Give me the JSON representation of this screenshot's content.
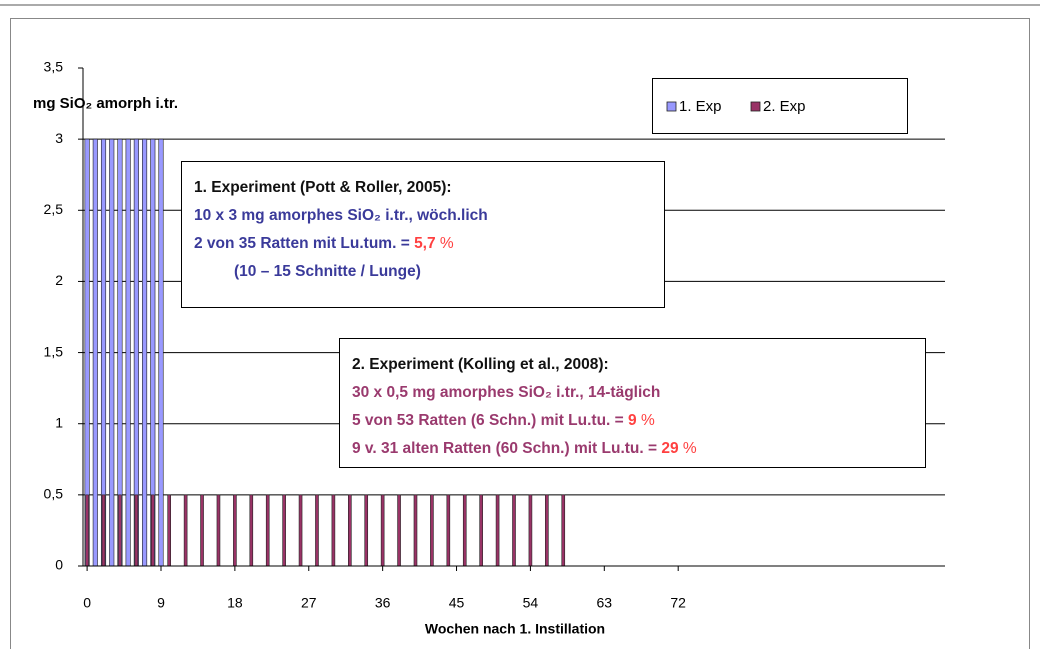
{
  "chart_data": {
    "type": "bar",
    "y_label": "mg SiO₂ amorph i.tr.",
    "x_label": "Wochen nach 1. Instillation",
    "xlim": [
      -0.5,
      104.5
    ],
    "xticks": [
      0,
      9,
      18,
      27,
      36,
      45,
      54,
      63,
      72
    ],
    "ylim": [
      0,
      3.5
    ],
    "yticks": [
      0,
      {
        "value": 0.5,
        "label": "0,5"
      },
      1,
      {
        "value": 1.5,
        "label": "1,5"
      },
      2,
      {
        "value": 2.5,
        "label": "2,5"
      },
      3,
      {
        "value": 3.5,
        "label": "3,5"
      }
    ],
    "grid": true,
    "legend": "top-right",
    "series": [
      {
        "name": "1. Exp",
        "color": "#9999ff",
        "x": [
          0,
          1,
          2,
          3,
          4,
          5,
          6,
          7,
          8,
          9
        ],
        "values": [
          3,
          3,
          3,
          3,
          3,
          3,
          3,
          3,
          3,
          3
        ]
      },
      {
        "name": "2. Exp",
        "color": "#993366",
        "x": [
          0,
          2,
          4,
          6,
          8,
          10,
          12,
          14,
          16,
          18,
          20,
          22,
          24,
          26,
          28,
          30,
          32,
          34,
          36,
          38,
          40,
          42,
          44,
          46,
          48,
          50,
          52,
          54,
          56,
          58
        ],
        "values": [
          0.5,
          0.5,
          0.5,
          0.5,
          0.5,
          0.5,
          0.5,
          0.5,
          0.5,
          0.5,
          0.5,
          0.5,
          0.5,
          0.5,
          0.5,
          0.5,
          0.5,
          0.5,
          0.5,
          0.5,
          0.5,
          0.5,
          0.5,
          0.5,
          0.5,
          0.5,
          0.5,
          0.5,
          0.5,
          0.5
        ]
      }
    ],
    "annotations": [
      {
        "lines": [
          [
            "1. Experiment (Pott & Roller, 2005):"
          ],
          [
            "10 x 3 mg amorphes SiO₂ i.tr., wöch.lich"
          ],
          [
            "2 von 35 Ratten mit Lu.tum. = ",
            "5,7",
            " %"
          ],
          [
            "(10 – 15 Schnitte / Lunge)"
          ]
        ]
      },
      {
        "lines": [
          [
            "2. Experiment (Kolling et al., 2008):"
          ],
          [
            "30 x 0,5 mg amorphes SiO₂ i.tr., 14-täglich"
          ],
          [
            "5 von 53 Ratten (6 Schn.) mit Lu.tu. = ",
            "9",
            " %"
          ],
          [
            "9 v. 31 alten Ratten (60 Schn.) mit Lu.tu. = ",
            "29",
            " %"
          ]
        ]
      }
    ]
  }
}
